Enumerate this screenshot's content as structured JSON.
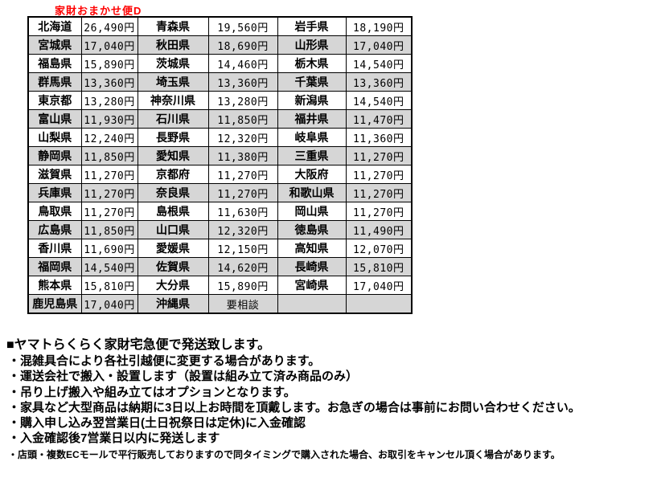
{
  "colors": {
    "title": "#ff0000",
    "row_shade": "#d6d6d6",
    "border": "#000000"
  },
  "page": {
    "title": "家財おまかせ便D"
  },
  "table": {
    "columns": [
      "prefecture",
      "price",
      "prefecture",
      "price",
      "prefecture",
      "price"
    ],
    "rows": [
      {
        "shaded": false,
        "cells": [
          "北海道",
          "26,490円",
          "青森県",
          "19,560円",
          "岩手県",
          "18,190円"
        ]
      },
      {
        "shaded": true,
        "cells": [
          "宮城県",
          "17,040円",
          "秋田県",
          "18,690円",
          "山形県",
          "17,040円"
        ]
      },
      {
        "shaded": false,
        "cells": [
          "福島県",
          "15,890円",
          "茨城県",
          "14,460円",
          "栃木県",
          "14,540円"
        ]
      },
      {
        "shaded": true,
        "cells": [
          "群馬県",
          "13,360円",
          "埼玉県",
          "13,360円",
          "千葉県",
          "13,360円"
        ]
      },
      {
        "shaded": false,
        "cells": [
          "東京都",
          "13,280円",
          "神奈川県",
          "13,280円",
          "新潟県",
          "14,540円"
        ]
      },
      {
        "shaded": true,
        "cells": [
          "富山県",
          "11,930円",
          "石川県",
          "11,850円",
          "福井県",
          "11,470円"
        ]
      },
      {
        "shaded": false,
        "cells": [
          "山梨県",
          "12,240円",
          "長野県",
          "12,320円",
          "岐阜県",
          "11,360円"
        ]
      },
      {
        "shaded": true,
        "cells": [
          "静岡県",
          "11,850円",
          "愛知県",
          "11,380円",
          "三重県",
          "11,270円"
        ]
      },
      {
        "shaded": false,
        "cells": [
          "滋賀県",
          "11,270円",
          "京都府",
          "11,270円",
          "大阪府",
          "11,270円"
        ]
      },
      {
        "shaded": true,
        "cells": [
          "兵庫県",
          "11,270円",
          "奈良県",
          "11,270円",
          "和歌山県",
          "11,270円"
        ]
      },
      {
        "shaded": false,
        "cells": [
          "鳥取県",
          "11,270円",
          "島根県",
          "11,630円",
          "岡山県",
          "11,270円"
        ]
      },
      {
        "shaded": true,
        "cells": [
          "広島県",
          "11,850円",
          "山口県",
          "12,320円",
          "徳島県",
          "11,490円"
        ]
      },
      {
        "shaded": false,
        "cells": [
          "香川県",
          "11,690円",
          "愛媛県",
          "12,150円",
          "高知県",
          "12,070円"
        ]
      },
      {
        "shaded": true,
        "cells": [
          "福岡県",
          "14,540円",
          "佐賀県",
          "14,620円",
          "長崎県",
          "15,810円"
        ]
      },
      {
        "shaded": false,
        "cells": [
          "熊本県",
          "15,810円",
          "大分県",
          "15,890円",
          "宮崎県",
          "17,040円"
        ]
      },
      {
        "shaded": true,
        "cells": [
          "鹿児島県",
          "17,040円",
          "沖縄県",
          "要相談",
          "",
          ""
        ]
      }
    ]
  },
  "notes": {
    "heading": "■ヤマトらくらく家財宅急便で発送致します。",
    "bullets": [
      "・混雑具合により各社引越便に変更する場合があります。",
      "・運送会社で搬入・設置します（設置は組み立て済み商品のみ）",
      "・吊り上げ搬入や組み立てはオプションとなります。",
      "・家具など大型商品は納期に3日以上お時間を頂戴します。お急ぎの場合は事前にお問い合わせください。",
      "・購入申し込み翌営業日(土日祝祭日は定休)に入金確認",
      "・入金確認後7営業日以内に発送します"
    ],
    "footnote": "・店頭・複数ECモールで平行販売しておりますので同タイミングで購入された場合、お取引をキャンセル頂く場合があります。"
  }
}
